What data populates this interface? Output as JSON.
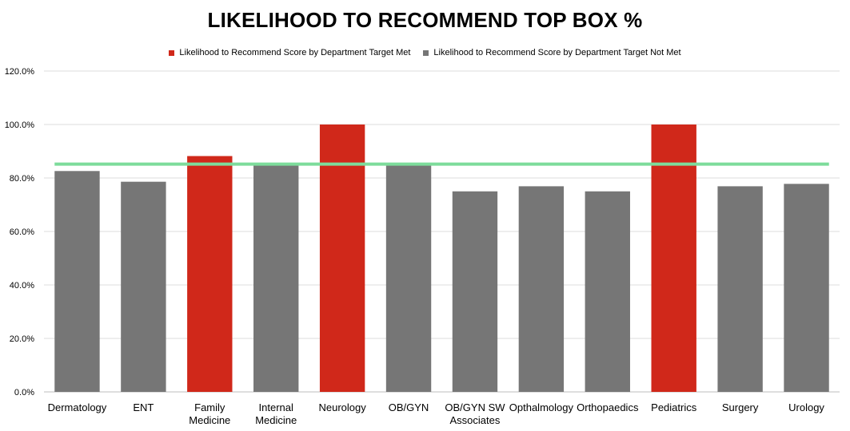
{
  "chart_data": {
    "type": "bar",
    "title": "LIKELIHOOD TO RECOMMEND TOP BOX %",
    "xlabel": "",
    "ylabel": "",
    "ylim": [
      0,
      120
    ],
    "yticks": [
      "0.0%",
      "20.0%",
      "40.0%",
      "60.0%",
      "80.0%",
      "100.0%",
      "120.0%"
    ],
    "ytick_values": [
      0,
      20,
      40,
      60,
      80,
      100,
      120
    ],
    "grid": true,
    "legend_position": "top-center",
    "categories": [
      [
        "Dermatology"
      ],
      [
        "ENT"
      ],
      [
        "Family",
        "Medicine"
      ],
      [
        "Internal",
        "Medicine"
      ],
      [
        "Neurology"
      ],
      [
        "OB/GYN"
      ],
      [
        "OB/GYN SW",
        "Associates"
      ],
      [
        "Opthalmology"
      ],
      [
        "Orthopaedics"
      ],
      [
        "Pediatrics"
      ],
      [
        "Surgery"
      ],
      [
        "Urology"
      ]
    ],
    "series": [
      {
        "name": "Likelihood to Recommend Score by Department Target Met",
        "color": "#d0281a",
        "values": [
          null,
          null,
          88.2,
          null,
          100,
          null,
          null,
          null,
          null,
          100,
          null,
          null
        ]
      },
      {
        "name": "Likelihood to Recommend Score by Department Target Not Met",
        "color": "#767676",
        "values": [
          82.6,
          78.6,
          null,
          85.2,
          null,
          85.2,
          75.0,
          76.9,
          75.0,
          null,
          76.9,
          77.8
        ]
      }
    ],
    "target_line": {
      "value": 85.2,
      "color": "#7ddc9b"
    }
  }
}
